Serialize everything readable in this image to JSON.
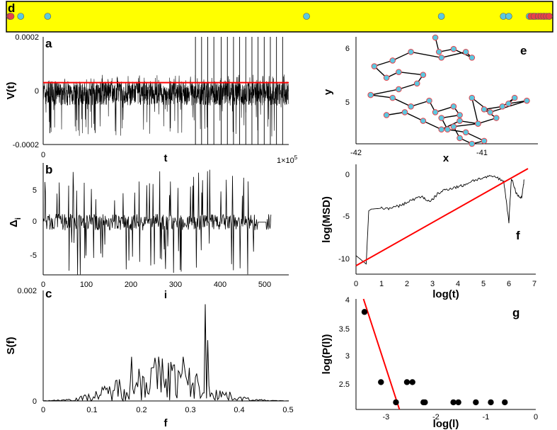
{
  "figure": {
    "panel_d": {
      "label": "d"
    },
    "panel_a": {
      "label": "a",
      "ylabel": "V(t)",
      "xlabel": "t",
      "y_ticks": [
        "0.0002",
        "0",
        "-0.0002"
      ],
      "x_ticks": [
        "0",
        "1×10"
      ],
      "x_exp": "5"
    },
    "panel_b": {
      "label": "b",
      "ylabel": "Δ",
      "ylabel_sub": "i",
      "xlabel": "i",
      "y_ticks": [
        "5",
        "0",
        "-5"
      ],
      "x_ticks": [
        "0",
        "100",
        "200",
        "300",
        "400",
        "500"
      ]
    },
    "panel_c": {
      "label": "c",
      "ylabel": "S(f)",
      "xlabel": "f",
      "y_ticks": [
        "0.002",
        "0"
      ],
      "x_ticks": [
        "0",
        "0.1",
        "0.2",
        "0.3",
        "0.4",
        "0.5"
      ]
    },
    "panel_e": {
      "label": "e",
      "ylabel": "y",
      "xlabel": "x",
      "y_ticks": [
        "6",
        "5"
      ],
      "x_ticks": [
        "-42",
        "-41"
      ]
    },
    "panel_f": {
      "label": "f",
      "ylabel": "log(MSD)",
      "xlabel": "log(t)",
      "y_ticks": [
        "0",
        "-5",
        "-10"
      ],
      "x_ticks": [
        "0",
        "1",
        "2",
        "3",
        "4",
        "5",
        "6",
        "7"
      ]
    },
    "panel_g": {
      "label": "g",
      "ylabel": "log(P(l))",
      "xlabel": "log(l)",
      "y_ticks": [
        "4",
        "3.5",
        "3",
        "2.5"
      ],
      "x_ticks": [
        "-3",
        "-2",
        "-1",
        "0"
      ]
    }
  },
  "chart_data": [
    {
      "panel": "d",
      "type": "scatter",
      "title": "",
      "xlabel": "",
      "ylabel": "",
      "background": "#FFFF00",
      "series": [
        {
          "name": "cyan events",
          "color": "#5BC8E0",
          "x": [
            0.0,
            0.02,
            0.07,
            0.55,
            0.8,
            0.915,
            0.925,
            0.963,
            0.97,
            0.975,
            0.99,
            1.0
          ]
        },
        {
          "name": "red events",
          "color": "#E8424A",
          "x": [
            0.0,
            0.002,
            0.966,
            0.972,
            0.98,
            0.985,
            0.99,
            0.995,
            1.0
          ]
        }
      ]
    },
    {
      "panel": "a",
      "type": "line",
      "title": "",
      "xlabel": "t",
      "ylabel": "V(t)",
      "xlim": [
        0,
        100000
      ],
      "ylim": [
        -0.0002,
        0.0002
      ],
      "series": [
        {
          "name": "V(t)",
          "color": "#000000",
          "description_values": "dense noise between about -0.0001 and 0.00004 with spikes near 0.0002"
        },
        {
          "name": "threshold",
          "color": "#FF0000",
          "x": [
            0,
            100000
          ],
          "y": [
            3e-05,
            3e-05
          ]
        }
      ],
      "spike_times": [
        62000,
        64500,
        67000,
        69500,
        72500,
        75000,
        77500,
        80000,
        82500,
        85000,
        87500,
        90000,
        92500,
        95000,
        97500
      ]
    },
    {
      "panel": "b",
      "type": "line",
      "title": "",
      "xlabel": "i",
      "ylabel": "Δi",
      "xlim": [
        0,
        550
      ],
      "ylim": [
        -8,
        9
      ],
      "series": [
        {
          "name": "Δi",
          "color": "#000000"
        }
      ]
    },
    {
      "panel": "c",
      "type": "line",
      "title": "",
      "xlabel": "f",
      "ylabel": "S(f)",
      "xlim": [
        0,
        0.5
      ],
      "ylim": [
        0,
        0.002
      ],
      "peaks": [
        {
          "f": 0.18,
          "S": 0.0008
        },
        {
          "f": 0.285,
          "S": 0.0008
        },
        {
          "f": 0.33,
          "S": 0.00175
        },
        {
          "f": 0.335,
          "S": 0.0011
        }
      ],
      "series": [
        {
          "name": "S(f)",
          "color": "#000000"
        }
      ]
    },
    {
      "panel": "e",
      "type": "line",
      "title": "",
      "xlabel": "x",
      "ylabel": "y",
      "xlim": [
        -42,
        -40.55
      ],
      "ylim": [
        4.35,
        6.2
      ],
      "series": [
        {
          "name": "trajectory",
          "color": "#000000",
          "marker_color": "#5BC8E0",
          "marker_edge": "#E8424A",
          "x": [
            -41.35,
            -41.32,
            -41.2,
            -41.05,
            -41.1,
            -41.3,
            -41.55,
            -41.7,
            -41.85,
            -41.75,
            -41.65,
            -41.45,
            -41.5,
            -41.65,
            -41.88,
            -41.7,
            -41.55,
            -41.4,
            -41.35,
            -41.2,
            -41.15,
            -41.3,
            -41.25,
            -41.1,
            -40.95,
            -41.05,
            -41.15,
            -41.2,
            -41.0,
            -40.85,
            -40.95,
            -40.8,
            -40.7,
            -40.75,
            -40.6,
            -40.9,
            -41.05,
            -41.0,
            -41.15,
            -41.3,
            -41.45,
            -41.6,
            -41.75
          ],
          "y": [
            6.2,
            5.95,
            6.0,
            5.85,
            5.95,
            5.85,
            5.95,
            5.8,
            5.7,
            5.5,
            5.6,
            5.55,
            5.4,
            5.3,
            5.2,
            5.15,
            5.0,
            5.1,
            4.9,
            5.0,
            4.85,
            4.8,
            4.6,
            4.55,
            4.4,
            4.35,
            4.45,
            4.65,
            4.7,
            4.8,
            4.95,
            5.0,
            5.15,
            5.05,
            5.1,
            4.9,
            5.15,
            4.7,
            4.75,
            4.6,
            4.75,
            4.9,
            4.85
          ]
        }
      ]
    },
    {
      "panel": "f",
      "type": "line",
      "title": "",
      "xlabel": "log(t)",
      "ylabel": "log(MSD)",
      "xlim": [
        0,
        7
      ],
      "ylim": [
        -12,
        1
      ],
      "series": [
        {
          "name": "MSD",
          "color": "#000000",
          "x": [
            0,
            0.4,
            0.5,
            0.6,
            1.0,
            1.4,
            1.8,
            2.2,
            2.6,
            2.9,
            3.2,
            3.5,
            3.8,
            4.2,
            4.6,
            5.0,
            5.4,
            5.8,
            6.0,
            6.1,
            6.3,
            6.5,
            6.6
          ],
          "y": [
            -9.8,
            -10.8,
            -4.5,
            -4.3,
            -4.2,
            -4.2,
            -3.8,
            -3.2,
            -2.8,
            -3.5,
            -2.5,
            -2.0,
            -1.8,
            -1.5,
            -0.9,
            -0.6,
            -0.4,
            -1.0,
            -5.8,
            -0.6,
            -2.5,
            -3.0,
            -0.8
          ]
        },
        {
          "name": "fit",
          "color": "#FF0000",
          "x": [
            0,
            6.75
          ],
          "y": [
            -11,
            0.5
          ]
        }
      ]
    },
    {
      "panel": "g",
      "type": "scatter",
      "title": "",
      "xlabel": "log(l)",
      "ylabel": "log(P(l))",
      "xlim": [
        -3.6,
        0
      ],
      "ylim": [
        2.3,
        4.0
      ],
      "series": [
        {
          "name": "P(l)",
          "color": "#000000",
          "x": [
            -3.43,
            -3.1,
            -2.8,
            -2.58,
            -2.47,
            -2.25,
            -2.22,
            -1.65,
            -1.55,
            -1.2,
            -0.9,
            -0.62
          ],
          "y": [
            3.8,
            2.72,
            2.41,
            2.72,
            2.72,
            2.41,
            2.41,
            2.41,
            2.41,
            2.41,
            2.41,
            2.41
          ]
        },
        {
          "name": "fit",
          "color": "#FF0000",
          "x": [
            -3.45,
            -2.73
          ],
          "y": [
            4.0,
            2.3
          ]
        }
      ]
    }
  ]
}
